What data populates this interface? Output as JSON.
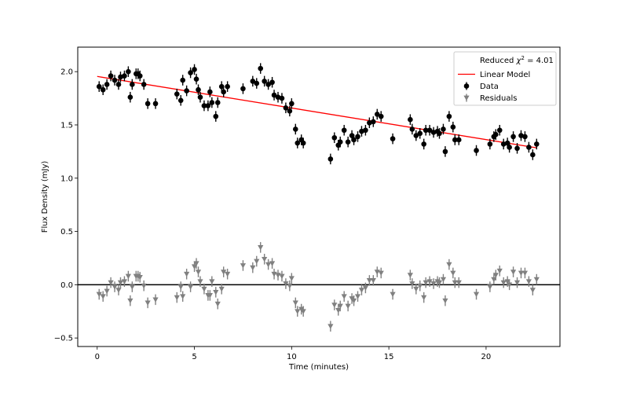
{
  "chart_data": {
    "type": "scatter",
    "xlabel": "Time (minutes)",
    "ylabel": "Flux Density (mJy)",
    "xlim": [
      -1.0,
      23.8
    ],
    "ylim": [
      -0.58,
      2.23
    ],
    "x_ticks": [
      0,
      5,
      10,
      15,
      20
    ],
    "y_ticks": [
      -0.5,
      0.0,
      0.5,
      1.0,
      1.5,
      2.0
    ],
    "x_tick_labels": [
      "0",
      "5",
      "10",
      "15",
      "20"
    ],
    "y_tick_labels": [
      "−0.5",
      "0.0",
      "0.5",
      "1.0",
      "1.5",
      "2.0"
    ],
    "grid": false,
    "legend_position": "top-right",
    "legend": {
      "stat_prefix": "Reduced ",
      "stat_symbol": "χ",
      "stat_power": "2",
      "stat_value": " = 4.01",
      "model_label": "Linear Model",
      "data_label": "Data",
      "residuals_label": "Residuals"
    },
    "colors": {
      "data": "#000000",
      "model": "#ff0000",
      "residuals": "#808080",
      "zero_line": "#000000"
    },
    "model": {
      "name": "Linear Model",
      "x": [
        0.0,
        22.6
      ],
      "y": [
        1.955,
        1.285
      ]
    },
    "error_bar": 0.05,
    "series": [
      {
        "name": "Data",
        "marker": "circle",
        "x": [
          0.1,
          0.3,
          0.5,
          0.7,
          0.9,
          1.1,
          1.2,
          1.4,
          1.6,
          1.7,
          1.8,
          2.0,
          2.1,
          2.2,
          2.4,
          2.6,
          3.0,
          4.1,
          4.3,
          4.4,
          4.6,
          4.8,
          5.0,
          5.1,
          5.2,
          5.3,
          5.5,
          5.7,
          5.8,
          5.9,
          6.1,
          6.2,
          6.4,
          6.5,
          6.7,
          7.5,
          8.0,
          8.2,
          8.4,
          8.6,
          8.8,
          9.0,
          9.1,
          9.3,
          9.5,
          9.7,
          9.9,
          10.0,
          10.2,
          10.3,
          10.5,
          10.6,
          12.0,
          12.2,
          12.4,
          12.5,
          12.7,
          12.9,
          13.1,
          13.2,
          13.4,
          13.6,
          13.8,
          14.0,
          14.2,
          14.4,
          14.6,
          15.2,
          16.1,
          16.2,
          16.4,
          16.6,
          16.8,
          16.9,
          17.1,
          17.3,
          17.5,
          17.6,
          17.8,
          17.9,
          18.1,
          18.3,
          18.4,
          18.6,
          19.5,
          20.2,
          20.4,
          20.5,
          20.7,
          20.9,
          21.1,
          21.2,
          21.4,
          21.6,
          21.8,
          22.0,
          22.2,
          22.4,
          22.6
        ],
        "y": [
          1.86,
          1.83,
          1.88,
          1.96,
          1.92,
          1.88,
          1.95,
          1.96,
          2.0,
          1.76,
          1.88,
          1.98,
          1.98,
          1.96,
          1.88,
          1.7,
          1.7,
          1.79,
          1.73,
          1.92,
          1.82,
          1.99,
          2.02,
          1.93,
          1.83,
          1.76,
          1.68,
          1.68,
          1.81,
          1.71,
          1.58,
          1.71,
          1.86,
          1.81,
          1.86,
          1.84,
          1.91,
          1.89,
          2.03,
          1.91,
          1.88,
          1.9,
          1.78,
          1.76,
          1.75,
          1.66,
          1.63,
          1.7,
          1.46,
          1.33,
          1.36,
          1.33,
          1.18,
          1.38,
          1.31,
          1.34,
          1.45,
          1.34,
          1.4,
          1.36,
          1.39,
          1.44,
          1.45,
          1.52,
          1.53,
          1.6,
          1.58,
          1.37,
          1.55,
          1.46,
          1.4,
          1.42,
          1.32,
          1.45,
          1.45,
          1.43,
          1.44,
          1.42,
          1.46,
          1.25,
          1.58,
          1.48,
          1.36,
          1.36,
          1.26,
          1.32,
          1.39,
          1.41,
          1.45,
          1.32,
          1.33,
          1.29,
          1.39,
          1.28,
          1.4,
          1.39,
          1.29,
          1.22,
          1.32
        ]
      },
      {
        "name": "Residuals",
        "marker": "triangle-down",
        "x": [
          0.1,
          0.3,
          0.5,
          0.7,
          0.9,
          1.1,
          1.2,
          1.4,
          1.6,
          1.7,
          1.8,
          2.0,
          2.1,
          2.2,
          2.4,
          2.6,
          3.0,
          4.1,
          4.3,
          4.4,
          4.6,
          4.8,
          5.0,
          5.1,
          5.2,
          5.3,
          5.5,
          5.7,
          5.8,
          5.9,
          6.1,
          6.2,
          6.4,
          6.5,
          6.7,
          7.5,
          8.0,
          8.2,
          8.4,
          8.6,
          8.8,
          9.0,
          9.1,
          9.3,
          9.5,
          9.7,
          9.9,
          10.0,
          10.2,
          10.3,
          10.5,
          10.6,
          12.0,
          12.2,
          12.4,
          12.5,
          12.7,
          12.9,
          13.1,
          13.2,
          13.4,
          13.6,
          13.8,
          14.0,
          14.2,
          14.4,
          14.6,
          15.2,
          16.1,
          16.2,
          16.4,
          16.6,
          16.8,
          16.9,
          17.1,
          17.3,
          17.5,
          17.6,
          17.8,
          17.9,
          18.1,
          18.3,
          18.4,
          18.6,
          19.5,
          20.2,
          20.4,
          20.5,
          20.7,
          20.9,
          21.1,
          21.2,
          21.4,
          21.6,
          21.8,
          22.0,
          22.2,
          22.4,
          22.6
        ],
        "y": [
          -0.09,
          -0.11,
          -0.06,
          0.02,
          -0.02,
          -0.05,
          0.02,
          0.03,
          0.08,
          -0.15,
          -0.02,
          0.08,
          0.08,
          0.07,
          -0.01,
          -0.17,
          -0.14,
          -0.12,
          -0.02,
          -0.11,
          0.1,
          -0.02,
          0.17,
          0.2,
          0.12,
          0.03,
          -0.04,
          -0.1,
          -0.1,
          0.03,
          -0.07,
          -0.18,
          -0.04,
          0.12,
          0.1,
          0.18,
          0.16,
          0.22,
          0.35,
          0.24,
          0.19,
          0.2,
          0.1,
          0.09,
          0.08,
          0.01,
          -0.01,
          0.06,
          -0.17,
          -0.25,
          -0.23,
          -0.25,
          -0.39,
          -0.19,
          -0.24,
          -0.2,
          -0.11,
          -0.2,
          -0.13,
          -0.15,
          -0.11,
          -0.05,
          -0.03,
          0.04,
          0.04,
          0.12,
          0.11,
          -0.09,
          0.09,
          0.01,
          -0.04,
          -0.01,
          -0.12,
          0.02,
          0.03,
          0.01,
          0.03,
          0.02,
          0.05,
          -0.15,
          0.19,
          0.11,
          0.02,
          0.02,
          -0.09,
          -0.02,
          0.05,
          0.09,
          0.13,
          0.02,
          0.03,
          -0.0,
          0.12,
          0.02,
          0.11,
          0.11,
          0.03,
          -0.05,
          0.05
        ]
      }
    ]
  }
}
